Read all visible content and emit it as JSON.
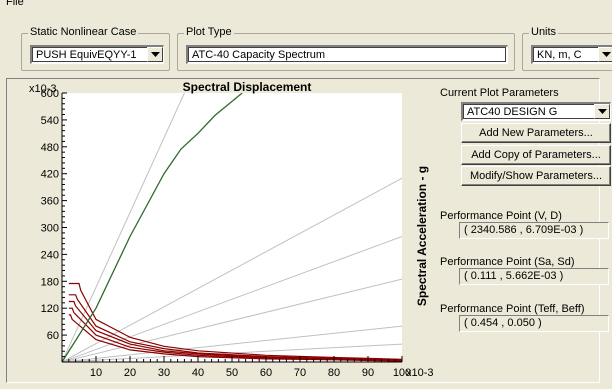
{
  "menubar": {
    "file_label": "File"
  },
  "case_group": {
    "legend": "Static Nonlinear Case",
    "selected": "PUSH EquivEQYY-1"
  },
  "plot_type_group": {
    "legend": "Plot Type",
    "selected": "ATC-40 Capacity Spectrum"
  },
  "units_group": {
    "legend": "Units",
    "selected": "KN, m, C"
  },
  "parameters": {
    "heading": "Current Plot Parameters",
    "selected": "ATC40 DESIGN G",
    "add_new_label": "Add New Parameters...",
    "add_copy_label": "Add Copy of Parameters...",
    "modify_label": "Modify/Show Parameters..."
  },
  "performance": {
    "vd_label": "Performance Point (V, D)",
    "vd_value": "( 2340.586 , 6.709E-03 )",
    "sasd_label": "Performance Point (Sa, Sd)",
    "sasd_value": "( 0.111 , 5.662E-03 )",
    "teff_label": "Performance Point (Teff, Beff)",
    "teff_value": "( 0.454 , 0.050 )"
  },
  "chart_data": {
    "type": "line",
    "title": "Spectral Displacement",
    "ylabel": "Spectral Acceleration - g",
    "x_multiplier": "x10-3",
    "y_multiplier": "x10-3",
    "xlim": [
      0,
      100
    ],
    "ylim": [
      0,
      600
    ],
    "x_ticks": [
      10,
      20,
      30,
      40,
      50,
      60,
      70,
      80,
      90,
      100
    ],
    "y_ticks": [
      60,
      120,
      180,
      240,
      300,
      360,
      420,
      480,
      540,
      600
    ],
    "colors": {
      "capacity": "#2e6b2e",
      "demand": "#8b0000",
      "period": "#c0c0c0"
    },
    "capacity_curve": {
      "x": [
        0,
        5,
        10,
        20,
        30,
        35,
        40,
        45,
        53
      ],
      "y": [
        0,
        60,
        120,
        280,
        420,
        475,
        510,
        550,
        600
      ]
    },
    "period_lines": [
      {
        "x": [
          0,
          36
        ],
        "y": [
          0,
          600
        ]
      },
      {
        "x": [
          0,
          100
        ],
        "y": [
          0,
          410
        ]
      },
      {
        "x": [
          0,
          100
        ],
        "y": [
          0,
          280
        ]
      },
      {
        "x": [
          0,
          100
        ],
        "y": [
          0,
          185
        ]
      },
      {
        "x": [
          0,
          100
        ],
        "y": [
          0,
          80
        ]
      },
      {
        "x": [
          0,
          100
        ],
        "y": [
          0,
          40
        ]
      }
    ],
    "demand_curves": [
      {
        "x": [
          2,
          5,
          5.5,
          10,
          20,
          30,
          40,
          60,
          80,
          100
        ],
        "y": [
          175,
          175,
          160,
          95,
          55,
          35,
          25,
          15,
          10,
          6
        ]
      },
      {
        "x": [
          2,
          4,
          4.5,
          10,
          20,
          30,
          40,
          60,
          80,
          100
        ],
        "y": [
          150,
          150,
          140,
          80,
          45,
          30,
          20,
          12,
          8,
          5
        ]
      },
      {
        "x": [
          2,
          3.5,
          4,
          10,
          20,
          30,
          40,
          60,
          80,
          100
        ],
        "y": [
          135,
          135,
          125,
          70,
          40,
          25,
          18,
          10,
          7,
          4
        ]
      },
      {
        "x": [
          2,
          3,
          3.5,
          10,
          20,
          30,
          40,
          60,
          80,
          100
        ],
        "y": [
          120,
          120,
          110,
          60,
          33,
          22,
          15,
          9,
          6,
          3
        ]
      },
      {
        "x": [
          2,
          2.5,
          3,
          10,
          20,
          30,
          40,
          60,
          80,
          100
        ],
        "y": [
          105,
          105,
          95,
          50,
          27,
          18,
          12,
          7,
          5,
          2
        ]
      }
    ],
    "demand_curve_labels": [],
    "grid": false
  }
}
